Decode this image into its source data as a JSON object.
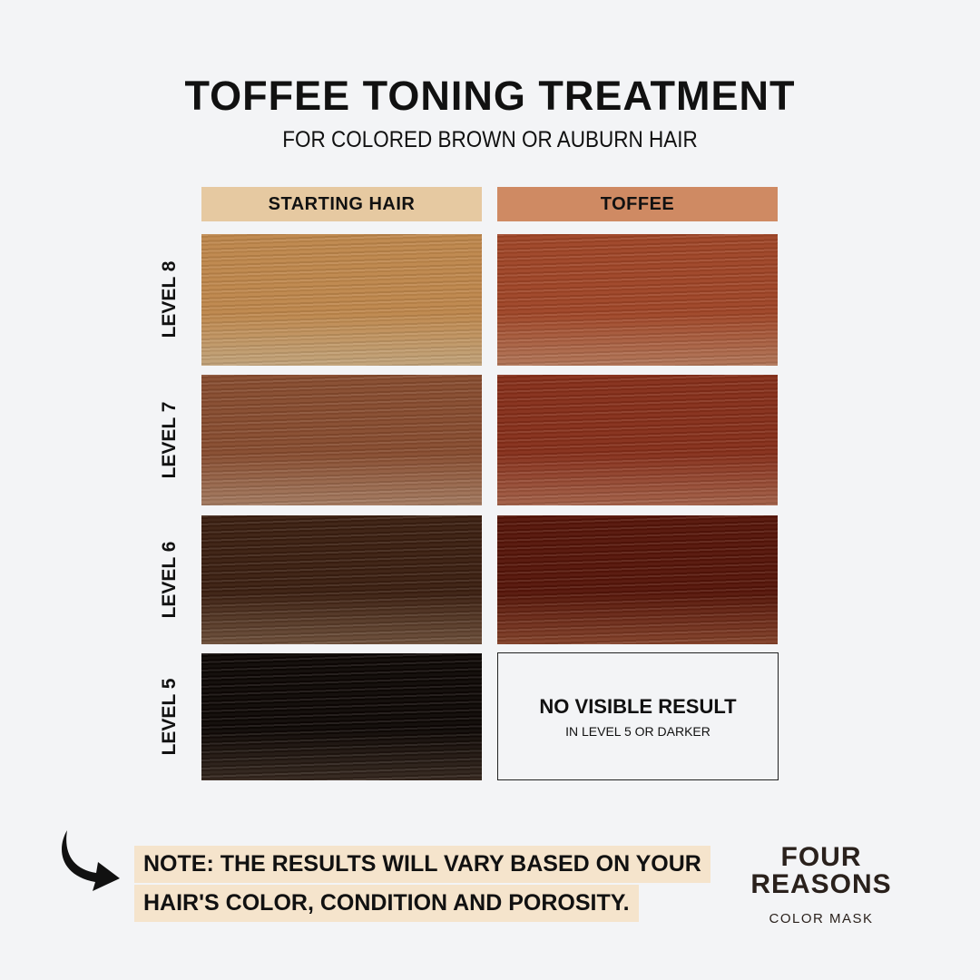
{
  "title": "TOFFEE TONING TREATMENT",
  "subtitle": "FOR COLORED BROWN OR AUBURN HAIR",
  "columns": [
    {
      "label": "STARTING HAIR",
      "color": "#e6c9a1"
    },
    {
      "label": "TOFFEE",
      "color": "#cf8a63"
    }
  ],
  "rows": [
    {
      "level": "LEVEL 8",
      "starting_color": "#dcb98a",
      "toffee_color": "#c98462"
    },
    {
      "level": "LEVEL 7",
      "starting_color": "#b98a6c",
      "toffee_color": "#b86c50"
    },
    {
      "level": "LEVEL 6",
      "starting_color": "#7a5840",
      "toffee_color": "#93482d"
    },
    {
      "level": "LEVEL 5",
      "starting_color": "#3a2a20",
      "toffee_result": {
        "title": "NO VISIBLE RESULT",
        "detail": "IN LEVEL 5 OR DARKER"
      }
    }
  ],
  "note": {
    "line1": "NOTE: THE RESULTS WILL VARY BASED ON YOUR",
    "line2": "HAIR'S COLOR, CONDITION AND POROSITY.",
    "icon": "curved-arrow-icon"
  },
  "brand": {
    "line1": "FOUR",
    "line2": "REASONS",
    "tagline": "COLOR MASK"
  }
}
